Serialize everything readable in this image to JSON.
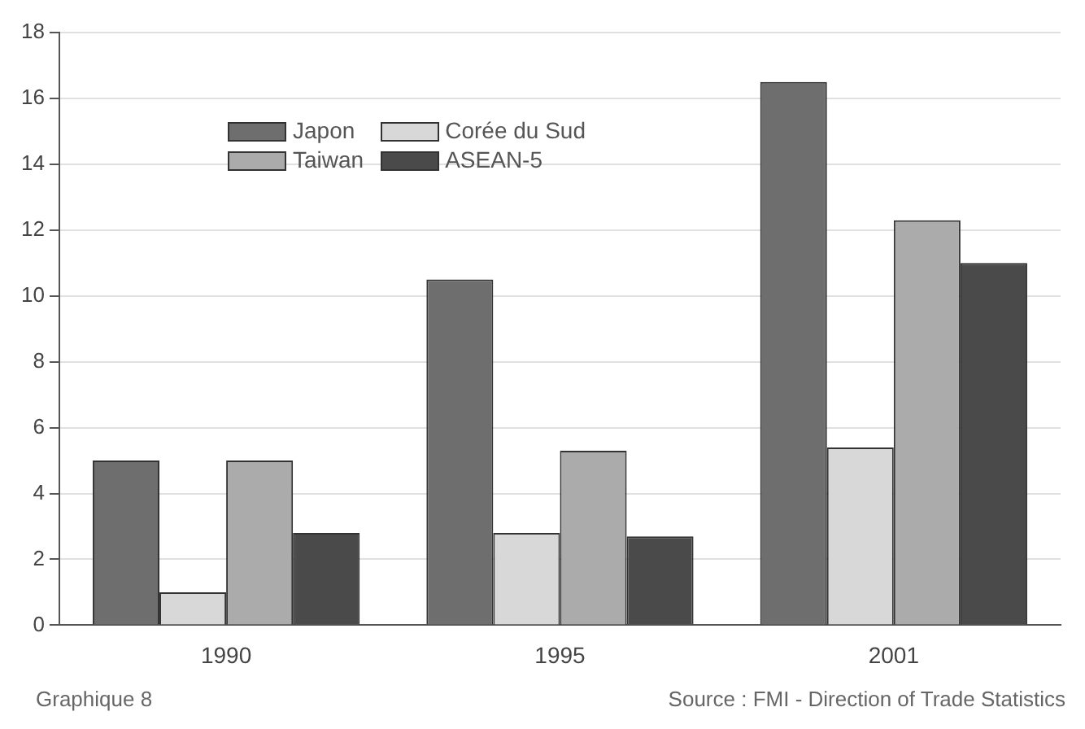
{
  "chart_data": {
    "type": "bar",
    "categories": [
      "1990",
      "1995",
      "2001"
    ],
    "series": [
      {
        "name": "Japon",
        "color": "#6e6e6e",
        "values": [
          5.0,
          10.5,
          16.5
        ]
      },
      {
        "name": "Corée du Sud",
        "color": "#d8d8d8",
        "values": [
          1.0,
          2.8,
          5.4
        ]
      },
      {
        "name": "Taiwan",
        "color": "#ababab",
        "values": [
          5.0,
          5.3,
          12.3
        ]
      },
      {
        "name": "ASEAN-5",
        "color": "#4a4a4a",
        "values": [
          2.8,
          2.7,
          11.0
        ]
      }
    ],
    "ylim": [
      0,
      18
    ],
    "yticks": [
      0,
      2,
      4,
      6,
      8,
      10,
      12,
      14,
      16,
      18
    ],
    "grid": "y",
    "legend": "top left",
    "annotations": [
      "Graphique 8",
      "Source : FMI - Direction of Trade Statistics"
    ]
  }
}
